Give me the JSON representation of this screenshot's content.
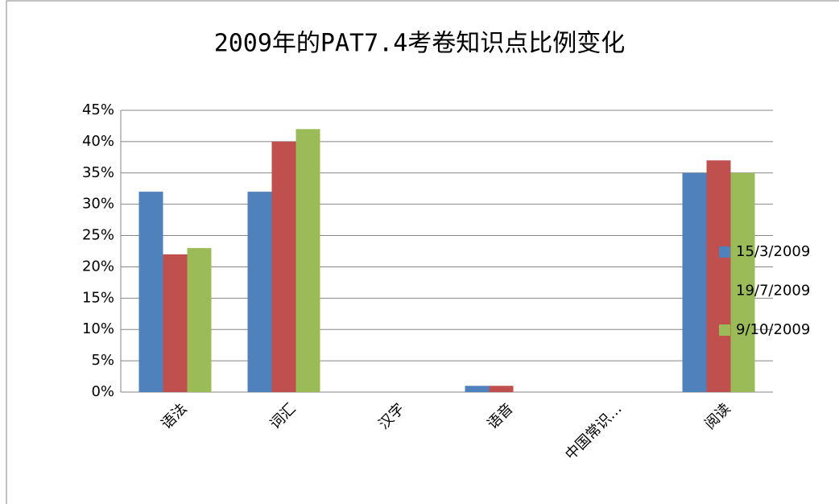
{
  "chart_data": {
    "type": "bar",
    "title": "2009年的PAT7.4考卷知识点比例变化",
    "categories": [
      "语法",
      "词汇",
      "汉字",
      "语音",
      "中国常识…",
      "阅读"
    ],
    "series": [
      {
        "name": "15/3/2009",
        "color": "#4f81bd",
        "values": [
          32,
          32,
          0,
          1,
          0,
          35
        ]
      },
      {
        "name": "19/7/2009",
        "color": "#c0504d",
        "values": [
          22,
          40,
          0,
          1,
          0,
          37
        ]
      },
      {
        "name": "9/10/2009",
        "color": "#9bbb59",
        "values": [
          23,
          42,
          0,
          0,
          0,
          35
        ]
      }
    ],
    "ylim": [
      0,
      45
    ],
    "yticks": [
      {
        "value": 0,
        "label": "0%"
      },
      {
        "value": 5,
        "label": "5%"
      },
      {
        "value": 10,
        "label": "10%"
      },
      {
        "value": 15,
        "label": "15%"
      },
      {
        "value": 20,
        "label": "20%"
      },
      {
        "value": 25,
        "label": "25%"
      },
      {
        "value": 30,
        "label": "30%"
      },
      {
        "value": 35,
        "label": "35%"
      },
      {
        "value": 40,
        "label": "40%"
      },
      {
        "value": 45,
        "label": "45%"
      }
    ],
    "grid": true,
    "legend": "right"
  }
}
